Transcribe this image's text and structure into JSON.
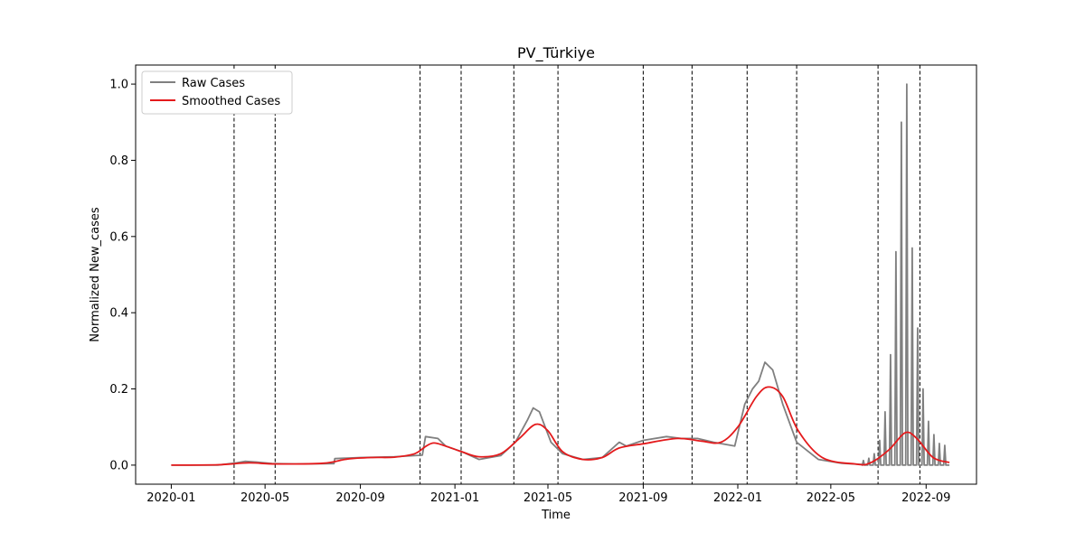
{
  "chart_data": {
    "type": "line",
    "title": "PV_Türkiye",
    "xlabel": "Time",
    "ylabel": "Normalized New_cases",
    "xlim": [
      "2019-11-16",
      "2022-11-05"
    ],
    "ylim": [
      -0.05,
      1.05
    ],
    "x_ticks": [
      "2020-01",
      "2020-05",
      "2020-09",
      "2021-01",
      "2021-05",
      "2021-09",
      "2022-01",
      "2022-05",
      "2022-09"
    ],
    "y_ticks": [
      "0.0",
      "0.2",
      "0.4",
      "0.6",
      "0.8",
      "1.0"
    ],
    "grid": false,
    "legend": {
      "position": "top-left",
      "entries": [
        "Raw Cases",
        "Smoothed Cases"
      ]
    },
    "colors": {
      "raw": "#808080",
      "smoothed": "#e41a1c",
      "vlines": "#000000"
    },
    "vertical_lines": [
      "2020-03-22",
      "2020-05-14",
      "2020-11-17",
      "2021-01-09",
      "2021-03-18",
      "2021-05-14",
      "2021-09-01",
      "2021-11-03",
      "2022-01-13",
      "2022-03-18",
      "2022-07-01",
      "2022-08-24"
    ],
    "series": [
      {
        "name": "Raw Cases",
        "points": [
          [
            "2020-01-01",
            0.0
          ],
          [
            "2020-03-01",
            0.0
          ],
          [
            "2020-03-25",
            0.006
          ],
          [
            "2020-04-05",
            0.01
          ],
          [
            "2020-04-20",
            0.008
          ],
          [
            "2020-05-10",
            0.004
          ],
          [
            "2020-06-10",
            0.003
          ],
          [
            "2020-07-29",
            0.004
          ],
          [
            "2020-07-30",
            0.017
          ],
          [
            "2020-09-01",
            0.02
          ],
          [
            "2020-10-15",
            0.022
          ],
          [
            "2020-11-20",
            0.026
          ],
          [
            "2020-11-24",
            0.075
          ],
          [
            "2020-12-10",
            0.07
          ],
          [
            "2020-12-20",
            0.05
          ],
          [
            "2021-01-10",
            0.035
          ],
          [
            "2021-02-01",
            0.015
          ],
          [
            "2021-03-01",
            0.025
          ],
          [
            "2021-03-20",
            0.06
          ],
          [
            "2021-04-05",
            0.12
          ],
          [
            "2021-04-12",
            0.15
          ],
          [
            "2021-04-20",
            0.14
          ],
          [
            "2021-05-05",
            0.06
          ],
          [
            "2021-05-20",
            0.03
          ],
          [
            "2021-06-15",
            0.015
          ],
          [
            "2021-07-10",
            0.02
          ],
          [
            "2021-08-01",
            0.06
          ],
          [
            "2021-08-10",
            0.05
          ],
          [
            "2021-09-01",
            0.065
          ],
          [
            "2021-10-01",
            0.075
          ],
          [
            "2021-10-20",
            0.07
          ],
          [
            "2021-11-10",
            0.07
          ],
          [
            "2021-12-01",
            0.06
          ],
          [
            "2021-12-28",
            0.05
          ],
          [
            "2022-01-10",
            0.16
          ],
          [
            "2022-01-20",
            0.2
          ],
          [
            "2022-01-28",
            0.22
          ],
          [
            "2022-02-05",
            0.27
          ],
          [
            "2022-02-15",
            0.25
          ],
          [
            "2022-02-28",
            0.16
          ],
          [
            "2022-03-18",
            0.06
          ],
          [
            "2022-04-15",
            0.015
          ],
          [
            "2022-05-15",
            0.005
          ],
          [
            "2022-06-10",
            0.002
          ]
        ],
        "spikes": [
          [
            "2022-06-12",
            0.012
          ],
          [
            "2022-06-19",
            0.018
          ],
          [
            "2022-06-26",
            0.03
          ],
          [
            "2022-07-03",
            0.065
          ],
          [
            "2022-07-10",
            0.14
          ],
          [
            "2022-07-17",
            0.29
          ],
          [
            "2022-07-24",
            0.56
          ],
          [
            "2022-07-31",
            0.9
          ],
          [
            "2022-08-07",
            1.0
          ],
          [
            "2022-08-14",
            0.57
          ],
          [
            "2022-08-21",
            0.36
          ],
          [
            "2022-08-28",
            0.2
          ],
          [
            "2022-09-04",
            0.115
          ],
          [
            "2022-09-11",
            0.08
          ],
          [
            "2022-09-18",
            0.057
          ],
          [
            "2022-09-25",
            0.052
          ]
        ]
      },
      {
        "name": "Smoothed Cases",
        "points": [
          [
            "2020-01-01",
            0.0
          ],
          [
            "2020-03-01",
            0.001
          ],
          [
            "2020-04-10",
            0.006
          ],
          [
            "2020-05-15",
            0.003
          ],
          [
            "2020-07-15",
            0.005
          ],
          [
            "2020-08-15",
            0.016
          ],
          [
            "2020-09-15",
            0.02
          ],
          [
            "2020-10-15",
            0.021
          ],
          [
            "2020-11-10",
            0.03
          ],
          [
            "2020-11-25",
            0.05
          ],
          [
            "2020-12-05",
            0.058
          ],
          [
            "2020-12-20",
            0.05
          ],
          [
            "2021-01-10",
            0.035
          ],
          [
            "2021-02-01",
            0.022
          ],
          [
            "2021-03-01",
            0.03
          ],
          [
            "2021-03-25",
            0.07
          ],
          [
            "2021-04-15",
            0.107
          ],
          [
            "2021-05-01",
            0.09
          ],
          [
            "2021-05-20",
            0.035
          ],
          [
            "2021-06-15",
            0.015
          ],
          [
            "2021-07-10",
            0.02
          ],
          [
            "2021-08-01",
            0.045
          ],
          [
            "2021-09-01",
            0.056
          ],
          [
            "2021-10-15",
            0.07
          ],
          [
            "2021-11-15",
            0.063
          ],
          [
            "2021-12-10",
            0.06
          ],
          [
            "2022-01-01",
            0.1
          ],
          [
            "2022-01-25",
            0.18
          ],
          [
            "2022-02-10",
            0.205
          ],
          [
            "2022-02-28",
            0.18
          ],
          [
            "2022-03-20",
            0.09
          ],
          [
            "2022-04-20",
            0.02
          ],
          [
            "2022-06-01",
            0.003
          ],
          [
            "2022-06-20",
            0.005
          ],
          [
            "2022-07-15",
            0.04
          ],
          [
            "2022-08-05",
            0.085
          ],
          [
            "2022-08-20",
            0.07
          ],
          [
            "2022-09-10",
            0.02
          ],
          [
            "2022-10-01",
            0.007
          ]
        ]
      }
    ]
  }
}
